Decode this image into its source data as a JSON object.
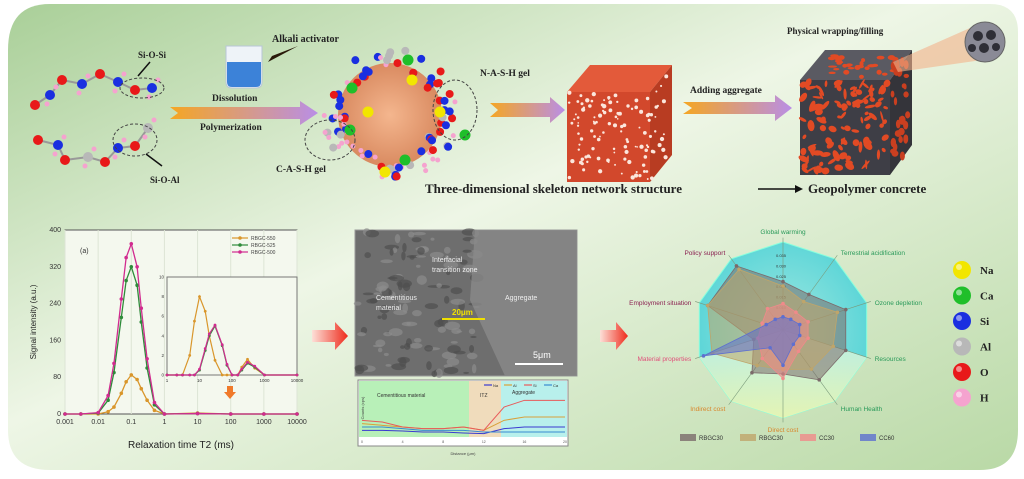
{
  "colors": {
    "panel_top": "#b7d7a8",
    "panel_mid": "#e6f2dc",
    "arrow_start": "#f5a623",
    "arrow_end": "#b98ee6",
    "red_arrow": "#ee2a1b"
  },
  "top": {
    "si_o_si": "Si-O-Si",
    "si_o_al": "Si-O-Al",
    "alkali_activator": "Alkali activator",
    "dissolution": "Dissolution",
    "polymerization": "Polymerization",
    "nash_gel": "N-A-S-H gel",
    "cash_gel": "C-A-S-H gel",
    "adding_aggregate": "Adding aggregate",
    "physical_wrapping": "Physical wrapping/filling",
    "skeleton": "Three-dimensional skeleton network structure",
    "geopolymer": "Geopolymer concrete"
  },
  "sem": {
    "itz_line1": "Interfacial",
    "itz_line2": "transition zone",
    "cement_line1": "Cementitious",
    "cement_line2": "material",
    "aggregate": "Aggregate",
    "width_label": "20μm",
    "scale_bar": "5μm"
  },
  "elements_legend": [
    {
      "symbol": "Na",
      "color": "#f2e600"
    },
    {
      "symbol": "Ca",
      "color": "#1fbf2a"
    },
    {
      "symbol": "Si",
      "color": "#1a2fe0"
    },
    {
      "symbol": "Al",
      "color": "#b8b8b8"
    },
    {
      "symbol": "O",
      "color": "#e81919"
    },
    {
      "symbol": "H",
      "color": "#f5a3cf"
    }
  ],
  "chart_data": [
    {
      "type": "line",
      "panel_label": "(a)",
      "xlabel": "Relaxation time T2 (ms)",
      "ylabel": "Signal intensity (a.u.)",
      "xscale": "log",
      "xlim": [
        0.001,
        10000
      ],
      "ylim": [
        0,
        400
      ],
      "xticks": [
        "0.001",
        "0.01",
        "0.1",
        "1",
        "10",
        "100",
        "1000",
        "10000"
      ],
      "yticks": [
        "0",
        "80",
        "160",
        "240",
        "320",
        "400"
      ],
      "legend_position": "top-right",
      "x": [
        0.001,
        0.003,
        0.01,
        0.02,
        0.03,
        0.05,
        0.07,
        0.1,
        0.15,
        0.2,
        0.3,
        0.5,
        1,
        10,
        100,
        1000,
        10000
      ],
      "series": [
        {
          "name": "RBGC-550",
          "color": "#d9962b",
          "values": [
            0,
            0,
            0,
            5,
            15,
            45,
            70,
            85,
            75,
            55,
            30,
            8,
            0,
            2,
            0,
            0,
            0
          ]
        },
        {
          "name": "RBGC-525",
          "color": "#2e8b3a",
          "values": [
            0,
            0,
            2,
            30,
            90,
            210,
            290,
            320,
            280,
            200,
            100,
            20,
            0,
            1,
            0,
            0,
            0
          ]
        },
        {
          "name": "RBGC-500",
          "color": "#d12b8f",
          "values": [
            0,
            0,
            3,
            40,
            110,
            250,
            340,
            370,
            320,
            230,
            120,
            25,
            0,
            1,
            0,
            0,
            0
          ]
        }
      ],
      "inset": {
        "xscale": "log",
        "xlim": [
          1,
          10000
        ],
        "ylim": [
          0,
          10
        ],
        "xticks": [
          "1",
          "10",
          "100",
          "1000",
          "10000"
        ],
        "yticks": [
          "0",
          "2",
          "4",
          "6",
          "8",
          "10"
        ],
        "x": [
          1,
          2,
          3,
          5,
          7,
          10,
          15,
          20,
          30,
          50,
          70,
          100,
          150,
          200,
          300,
          500,
          1000,
          10000
        ],
        "series": [
          {
            "name": "RBGC-550",
            "values": [
              0,
              0,
              0,
              2,
              5.5,
              8,
              6.5,
              4,
              1.5,
              0,
              0,
              0,
              0,
              0.8,
              1.6,
              0.7,
              0,
              0
            ]
          },
          {
            "name": "RBGC-525",
            "values": [
              0,
              0,
              0,
              0,
              0,
              0.5,
              2.5,
              4,
              5,
              3,
              1,
              0,
              0,
              0.5,
              1.2,
              0.8,
              0,
              0
            ]
          },
          {
            "name": "RBGC-500",
            "values": [
              0,
              0,
              0,
              0,
              0,
              0.6,
              2.7,
              4.2,
              5.1,
              3.1,
              1.1,
              0,
              0,
              0.6,
              1.3,
              0.9,
              0,
              0
            ]
          }
        ]
      }
    },
    {
      "type": "line",
      "xlabel": "Distance (μm)",
      "ylabel": "Counts (cps)",
      "regions": [
        "Cementitious material",
        "ITZ",
        "Aggregate"
      ],
      "x": [
        0,
        2,
        4,
        6,
        8,
        10,
        12,
        14,
        16,
        18,
        20
      ],
      "series": [
        {
          "name": "Na",
          "color": "#3a3ad0",
          "values": [
            2,
            2,
            1.8,
            1.5,
            1.5,
            1.2,
            1,
            2.5,
            3,
            3,
            3
          ]
        },
        {
          "name": "Al",
          "color": "#d9a03a",
          "values": [
            4,
            3.5,
            3,
            2.5,
            2.5,
            3,
            2,
            5,
            6,
            6,
            6
          ]
        },
        {
          "name": "Si",
          "color": "#e85a5a",
          "values": [
            5,
            4.5,
            3,
            2.5,
            2.5,
            3,
            2,
            9,
            11,
            11,
            11
          ]
        },
        {
          "name": "Ca",
          "color": "#3a8ad0",
          "values": [
            3,
            3,
            2.5,
            2,
            2,
            2,
            1.5,
            1.5,
            1.5,
            1.5,
            1.5
          ]
        }
      ]
    },
    {
      "type": "radar",
      "axes": [
        "Global warming",
        "Terrestrial acidification",
        "Ozone depletion",
        "Resources",
        "Human Health",
        "Direct cost",
        "Indirect cost",
        "Material properties",
        "Employment situation",
        "Policy support"
      ],
      "radial_ticks": [
        "0.005",
        "0.010",
        "0.015",
        "0.020",
        "0.025",
        "0.030",
        "0.035"
      ],
      "legend_position": "bottom",
      "series": [
        {
          "name": "RBGC30",
          "color": "#7b6a6a",
          "values": [
            0.55,
            0.5,
            0.75,
            0.75,
            0.7,
            0.5,
            0.6,
            0.35,
            0.9,
            0.9
          ]
        },
        {
          "name": "RBGC30",
          "color": "#bfa56a",
          "values": [
            0.5,
            0.4,
            0.65,
            0.6,
            0.55,
            0.45,
            0.5,
            0.85,
            0.9,
            0.85
          ]
        },
        {
          "name": "CC30",
          "color": "#f08a8a",
          "values": [
            0.3,
            0.25,
            0.3,
            0.3,
            0.3,
            0.55,
            0.4,
            0.3,
            0.25,
            0.3
          ]
        },
        {
          "name": "CC60",
          "color": "#5d6fd0",
          "values": [
            0.15,
            0.15,
            0.2,
            0.2,
            0.2,
            0.4,
            0.25,
            0.95,
            0.2,
            0.15
          ]
        }
      ]
    }
  ]
}
